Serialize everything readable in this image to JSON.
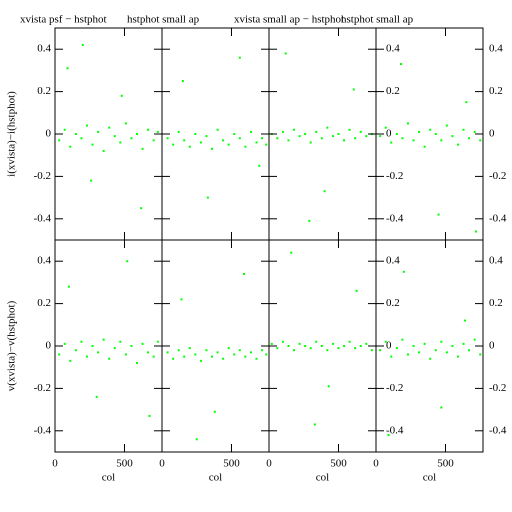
{
  "chart_data": [
    {
      "type": "scatter",
      "title": "xvista psf − hstphot",
      "ylabel": "i(xvista)−i(hstphot)",
      "color": "#00ff00",
      "xlim": [
        0,
        770
      ],
      "ylim": [
        -0.5,
        0.5
      ],
      "xticks": [
        0,
        500
      ],
      "yticks": [
        -0.4,
        -0.2,
        0,
        0.2,
        0.4
      ],
      "ytick_labels": [
        "left"
      ],
      "x": [
        30,
        70,
        110,
        150,
        190,
        230,
        270,
        310,
        350,
        390,
        430,
        470,
        510,
        550,
        590,
        630,
        670,
        710,
        740,
        90,
        260,
        480,
        620,
        200
      ],
      "y": [
        -0.03,
        0.02,
        -0.06,
        0.0,
        -0.02,
        0.04,
        -0.05,
        0.01,
        -0.08,
        0.03,
        -0.01,
        -0.04,
        0.05,
        -0.02,
        0.0,
        -0.07,
        0.02,
        -0.03,
        0.01,
        0.31,
        -0.22,
        0.18,
        -0.35,
        0.42
      ]
    },
    {
      "type": "scatter",
      "title": "hstphot small ap",
      "color": "#00ff00",
      "xlim": [
        0,
        770
      ],
      "ylim": [
        -0.5,
        0.5
      ],
      "xticks": [
        0,
        500
      ],
      "yticks": [
        -0.4,
        -0.2,
        0,
        0.2,
        0.4
      ],
      "ytick_labels": [],
      "x": [
        40,
        80,
        120,
        160,
        200,
        240,
        280,
        320,
        360,
        400,
        440,
        480,
        520,
        560,
        600,
        640,
        680,
        720,
        750,
        150,
        330,
        560,
        700
      ],
      "y": [
        -0.02,
        -0.05,
        0.01,
        -0.03,
        -0.06,
        0.0,
        -0.04,
        -0.01,
        -0.07,
        0.02,
        -0.03,
        -0.05,
        0.0,
        -0.02,
        -0.06,
        0.01,
        -0.04,
        -0.02,
        -0.05,
        0.25,
        -0.3,
        0.36,
        -0.15
      ]
    },
    {
      "type": "scatter",
      "title": "xvista small ap − hstphot",
      "color": "#00ff00",
      "xlim": [
        0,
        770
      ],
      "ylim": [
        -0.5,
        0.5
      ],
      "xticks": [
        0,
        500
      ],
      "yticks": [
        -0.4,
        -0.2,
        0,
        0.2,
        0.4
      ],
      "ytick_labels": [],
      "x": [
        20,
        60,
        100,
        140,
        180,
        220,
        260,
        300,
        340,
        380,
        420,
        460,
        500,
        540,
        580,
        620,
        660,
        700,
        740,
        120,
        400,
        610,
        290
      ],
      "y": [
        0.0,
        -0.02,
        0.01,
        -0.03,
        0.02,
        -0.01,
        0.0,
        -0.04,
        0.01,
        -0.02,
        0.03,
        -0.01,
        0.0,
        -0.03,
        0.02,
        -0.02,
        0.01,
        -0.01,
        0.0,
        0.38,
        -0.27,
        0.21,
        -0.41
      ]
    },
    {
      "type": "scatter",
      "title": "hstphot small ap",
      "color": "#00ff00",
      "xlim": [
        0,
        770
      ],
      "ylim": [
        -0.5,
        0.5
      ],
      "xticks": [
        0,
        500
      ],
      "yticks": [
        -0.4,
        -0.2,
        0,
        0.2,
        0.4
      ],
      "ytick_labels": [
        "inside",
        "right"
      ],
      "x": [
        30,
        70,
        110,
        150,
        190,
        230,
        270,
        310,
        350,
        390,
        430,
        470,
        510,
        550,
        590,
        630,
        670,
        710,
        750,
        180,
        450,
        650,
        720
      ],
      "y": [
        -0.01,
        0.03,
        -0.04,
        0.0,
        -0.02,
        0.05,
        -0.03,
        0.01,
        -0.06,
        0.02,
        0.0,
        -0.03,
        0.04,
        -0.01,
        -0.05,
        0.02,
        -0.02,
        0.01,
        -0.03,
        0.33,
        -0.38,
        0.15,
        -0.46
      ]
    },
    {
      "type": "scatter",
      "xlabel": "col",
      "ylabel": "v(xvista)−v(hstphot)",
      "color": "#00ff00",
      "xlim": [
        0,
        770
      ],
      "ylim": [
        -0.5,
        0.5
      ],
      "xticks": [
        0,
        500
      ],
      "yticks": [
        -0.4,
        -0.2,
        0,
        0.2,
        0.4
      ],
      "ytick_labels": [
        "left"
      ],
      "x": [
        30,
        70,
        110,
        150,
        190,
        230,
        270,
        310,
        350,
        390,
        430,
        470,
        510,
        550,
        590,
        630,
        670,
        710,
        740,
        100,
        300,
        520,
        680
      ],
      "y": [
        -0.04,
        0.01,
        -0.07,
        -0.02,
        0.02,
        -0.05,
        0.0,
        -0.03,
        0.03,
        -0.06,
        -0.01,
        0.02,
        -0.04,
        0.0,
        -0.08,
        0.01,
        -0.03,
        -0.05,
        0.02,
        0.28,
        -0.24,
        0.4,
        -0.33
      ]
    },
    {
      "type": "scatter",
      "xlabel": "col",
      "color": "#00ff00",
      "xlim": [
        0,
        770
      ],
      "ylim": [
        -0.5,
        0.5
      ],
      "xticks": [
        0,
        500
      ],
      "yticks": [
        -0.4,
        -0.2,
        0,
        0.2,
        0.4
      ],
      "ytick_labels": [],
      "x": [
        40,
        80,
        120,
        160,
        200,
        240,
        280,
        320,
        360,
        400,
        440,
        480,
        520,
        560,
        600,
        640,
        680,
        720,
        750,
        140,
        380,
        590,
        250
      ],
      "y": [
        -0.03,
        -0.06,
        -0.02,
        -0.05,
        -0.01,
        -0.04,
        -0.07,
        -0.02,
        -0.05,
        -0.03,
        -0.06,
        -0.01,
        -0.04,
        -0.02,
        -0.05,
        -0.03,
        -0.06,
        -0.02,
        -0.04,
        0.22,
        -0.31,
        0.34,
        -0.44
      ]
    },
    {
      "type": "scatter",
      "xlabel": "col",
      "color": "#00ff00",
      "xlim": [
        0,
        770
      ],
      "ylim": [
        -0.5,
        0.5
      ],
      "xticks": [
        0,
        500
      ],
      "yticks": [
        -0.4,
        -0.2,
        0,
        0.2,
        0.4
      ],
      "ytick_labels": [],
      "x": [
        20,
        60,
        100,
        140,
        180,
        220,
        260,
        300,
        340,
        380,
        420,
        460,
        500,
        540,
        580,
        620,
        660,
        700,
        740,
        160,
        430,
        630,
        330
      ],
      "y": [
        0.01,
        -0.01,
        0.02,
        0.0,
        -0.02,
        0.01,
        0.0,
        -0.01,
        0.02,
        0.0,
        -0.02,
        0.01,
        -0.01,
        0.0,
        0.02,
        -0.01,
        0.0,
        0.01,
        -0.02,
        0.44,
        -0.19,
        0.26,
        -0.37
      ]
    },
    {
      "type": "scatter",
      "xlabel": "col",
      "color": "#00ff00",
      "xlim": [
        0,
        770
      ],
      "ylim": [
        -0.5,
        0.5
      ],
      "xticks": [
        0,
        500
      ],
      "yticks": [
        -0.4,
        -0.2,
        0,
        0.2,
        0.4
      ],
      "ytick_labels": [
        "inside",
        "right"
      ],
      "x": [
        30,
        70,
        110,
        150,
        190,
        230,
        270,
        310,
        350,
        390,
        430,
        470,
        510,
        550,
        590,
        630,
        670,
        710,
        750,
        200,
        470,
        640,
        90
      ],
      "y": [
        -0.02,
        0.02,
        -0.05,
        -0.01,
        0.03,
        -0.04,
        0.0,
        -0.03,
        0.01,
        -0.06,
        -0.02,
        0.02,
        -0.03,
        0.0,
        -0.05,
        0.01,
        -0.02,
        0.03,
        -0.04,
        0.35,
        -0.29,
        0.12,
        -0.42
      ]
    }
  ]
}
